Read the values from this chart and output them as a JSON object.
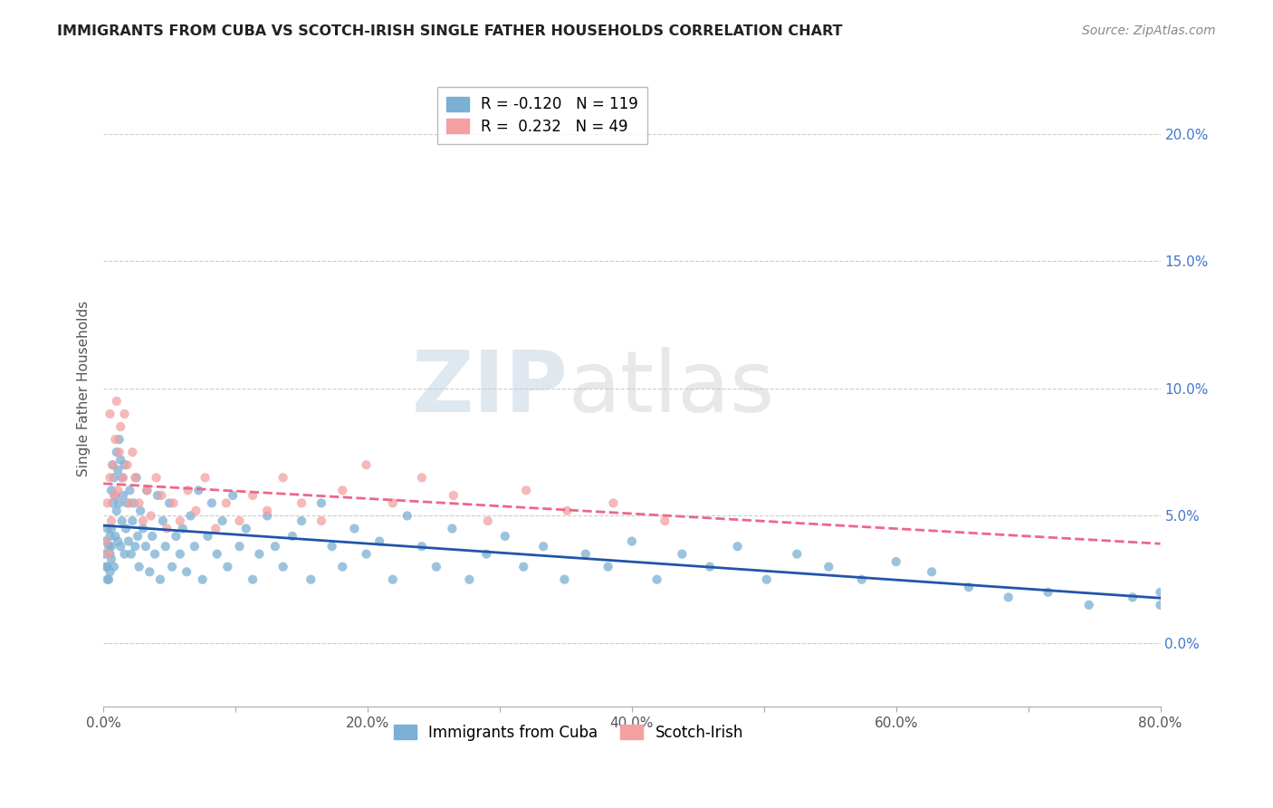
{
  "title": "IMMIGRANTS FROM CUBA VS SCOTCH-IRISH SINGLE FATHER HOUSEHOLDS CORRELATION CHART",
  "source": "Source: ZipAtlas.com",
  "ylabel": "Single Father Households",
  "legend_label_blue": "Immigrants from Cuba",
  "legend_label_pink": "Scotch-Irish",
  "R_blue": -0.12,
  "N_blue": 119,
  "R_pink": 0.232,
  "N_pink": 49,
  "blue_color": "#7BAFD4",
  "pink_color": "#F4A0A0",
  "trend_blue_color": "#2255AA",
  "trend_pink_color": "#EE6688",
  "xlim": [
    0.0,
    0.8
  ],
  "ylim": [
    -0.025,
    0.225
  ],
  "xticks": [
    0.0,
    0.1,
    0.2,
    0.3,
    0.4,
    0.5,
    0.6,
    0.7,
    0.8
  ],
  "yticks_right": [
    0.0,
    0.05,
    0.1,
    0.15,
    0.2
  ],
  "ytick_labels_right": [
    "0.0%",
    "5.0%",
    "10.0%",
    "15.0%",
    "20.0%"
  ],
  "xtick_labels": [
    "0.0%",
    "",
    "20.0%",
    "",
    "40.0%",
    "",
    "60.0%",
    "",
    "80.0%"
  ],
  "watermark_zip": "ZIP",
  "watermark_atlas": "atlas",
  "bg_color": "#FFFFFF",
  "grid_color": "#CCCCCC",
  "blue_x": [
    0.001,
    0.002,
    0.003,
    0.003,
    0.004,
    0.004,
    0.005,
    0.005,
    0.005,
    0.006,
    0.006,
    0.006,
    0.007,
    0.007,
    0.008,
    0.008,
    0.009,
    0.009,
    0.01,
    0.01,
    0.011,
    0.011,
    0.012,
    0.012,
    0.013,
    0.013,
    0.014,
    0.014,
    0.015,
    0.016,
    0.016,
    0.017,
    0.018,
    0.019,
    0.02,
    0.021,
    0.022,
    0.023,
    0.024,
    0.025,
    0.026,
    0.027,
    0.028,
    0.03,
    0.032,
    0.033,
    0.035,
    0.037,
    0.039,
    0.041,
    0.043,
    0.045,
    0.047,
    0.05,
    0.052,
    0.055,
    0.058,
    0.06,
    0.063,
    0.066,
    0.069,
    0.072,
    0.075,
    0.079,
    0.082,
    0.086,
    0.09,
    0.094,
    0.098,
    0.103,
    0.108,
    0.113,
    0.118,
    0.124,
    0.13,
    0.136,
    0.143,
    0.15,
    0.157,
    0.165,
    0.173,
    0.181,
    0.19,
    0.199,
    0.209,
    0.219,
    0.23,
    0.241,
    0.252,
    0.264,
    0.277,
    0.29,
    0.304,
    0.318,
    0.333,
    0.349,
    0.365,
    0.382,
    0.4,
    0.419,
    0.438,
    0.459,
    0.48,
    0.502,
    0.525,
    0.549,
    0.574,
    0.6,
    0.627,
    0.655,
    0.685,
    0.715,
    0.746,
    0.779,
    0.8,
    0.8,
    0.002,
    0.003,
    0.006
  ],
  "blue_y": [
    0.035,
    0.04,
    0.03,
    0.045,
    0.038,
    0.025,
    0.042,
    0.028,
    0.035,
    0.045,
    0.033,
    0.06,
    0.07,
    0.055,
    0.065,
    0.03,
    0.058,
    0.042,
    0.075,
    0.052,
    0.068,
    0.04,
    0.08,
    0.055,
    0.072,
    0.038,
    0.065,
    0.048,
    0.058,
    0.035,
    0.07,
    0.045,
    0.055,
    0.04,
    0.06,
    0.035,
    0.048,
    0.055,
    0.038,
    0.065,
    0.042,
    0.03,
    0.052,
    0.045,
    0.038,
    0.06,
    0.028,
    0.042,
    0.035,
    0.058,
    0.025,
    0.048,
    0.038,
    0.055,
    0.03,
    0.042,
    0.035,
    0.045,
    0.028,
    0.05,
    0.038,
    0.06,
    0.025,
    0.042,
    0.055,
    0.035,
    0.048,
    0.03,
    0.058,
    0.038,
    0.045,
    0.025,
    0.035,
    0.05,
    0.038,
    0.03,
    0.042,
    0.048,
    0.025,
    0.055,
    0.038,
    0.03,
    0.045,
    0.035,
    0.04,
    0.025,
    0.05,
    0.038,
    0.03,
    0.045,
    0.025,
    0.035,
    0.042,
    0.03,
    0.038,
    0.025,
    0.035,
    0.03,
    0.04,
    0.025,
    0.035,
    0.03,
    0.038,
    0.025,
    0.035,
    0.03,
    0.025,
    0.032,
    0.028,
    0.022,
    0.018,
    0.02,
    0.015,
    0.018,
    0.02,
    0.015,
    0.03,
    0.025,
    0.038
  ],
  "pink_x": [
    0.002,
    0.003,
    0.004,
    0.005,
    0.005,
    0.006,
    0.007,
    0.008,
    0.009,
    0.01,
    0.011,
    0.012,
    0.013,
    0.015,
    0.016,
    0.018,
    0.02,
    0.022,
    0.024,
    0.027,
    0.03,
    0.033,
    0.036,
    0.04,
    0.044,
    0.048,
    0.053,
    0.058,
    0.064,
    0.07,
    0.077,
    0.085,
    0.093,
    0.103,
    0.113,
    0.124,
    0.136,
    0.15,
    0.165,
    0.181,
    0.199,
    0.219,
    0.241,
    0.265,
    0.291,
    0.32,
    0.351,
    0.386,
    0.425
  ],
  "pink_y": [
    0.04,
    0.055,
    0.035,
    0.065,
    0.09,
    0.048,
    0.07,
    0.058,
    0.08,
    0.095,
    0.06,
    0.075,
    0.085,
    0.065,
    0.09,
    0.07,
    0.055,
    0.075,
    0.065,
    0.055,
    0.048,
    0.06,
    0.05,
    0.065,
    0.058,
    0.045,
    0.055,
    0.048,
    0.06,
    0.052,
    0.065,
    0.045,
    0.055,
    0.048,
    0.058,
    0.052,
    0.065,
    0.055,
    0.048,
    0.06,
    0.07,
    0.055,
    0.065,
    0.058,
    0.048,
    0.06,
    0.052,
    0.055,
    0.048
  ]
}
